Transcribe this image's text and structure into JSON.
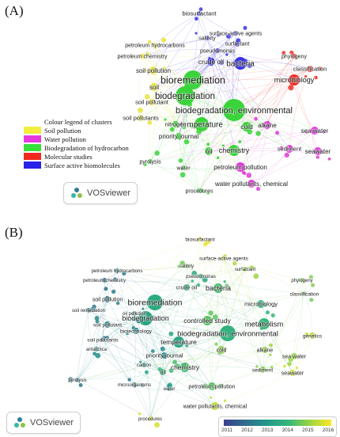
{
  "panel_a": {
    "label": "(A)",
    "legend": {
      "title": "Colour legend of clusters",
      "items": [
        {
          "label": "Soil pollution",
          "color": "#f2ee3c"
        },
        {
          "label": "Water pollution",
          "color": "#e639e0"
        },
        {
          "label": "Biodegradation of hydrocarbon",
          "color": "#37e03a"
        },
        {
          "label": "Molecular studies",
          "color": "#f0281e"
        },
        {
          "label": "Surface active biomolecules",
          "color": "#2a22e6"
        }
      ]
    },
    "brand": "VOSviewer"
  },
  "panel_b": {
    "label": "(B)",
    "brand": "VOSviewer",
    "colorbar": {
      "ticks": [
        "2011",
        "2012",
        "2013",
        "2014",
        "2015",
        "2016"
      ],
      "colors": [
        "#3b3f8f",
        "#2f6d8c",
        "#22988a",
        "#35b779",
        "#9bd542",
        "#fde725"
      ]
    }
  },
  "cluster_colors": {
    "yellow": "#e8e43a",
    "magenta": "#e03ad8",
    "green": "#3ad43a",
    "red": "#ee2a22",
    "blue": "#3a34e0"
  },
  "terms_a": [
    {
      "text": "biosurfactant",
      "c": "blue"
    },
    {
      "text": "surface-active agents",
      "c": "blue"
    },
    {
      "text": "salinity",
      "c": "blue"
    },
    {
      "text": "surfactant",
      "c": "blue"
    },
    {
      "text": "petroleum hydrocarbons",
      "c": "yellow"
    },
    {
      "text": "pseudomonas",
      "c": "blue"
    },
    {
      "text": "phylogeny",
      "c": "red"
    },
    {
      "text": "petroleum chemistry",
      "c": "yellow"
    },
    {
      "text": "crude oil",
      "c": "blue"
    },
    {
      "text": "bacteria",
      "c": "blue"
    },
    {
      "text": "classification",
      "c": "red"
    },
    {
      "text": "soil pollution",
      "c": "yellow"
    },
    {
      "text": "microbiology",
      "c": "red"
    },
    {
      "text": "bioremediation",
      "c": "green"
    },
    {
      "text": "soil",
      "c": "yellow"
    },
    {
      "text": "biodegradation",
      "c": "green"
    },
    {
      "text": "soil pollutant",
      "c": "yellow"
    },
    {
      "text": "biodegradation, environmental",
      "c": "green"
    },
    {
      "text": "soil pollutants",
      "c": "yellow"
    },
    {
      "text": "temperature",
      "c": "green"
    },
    {
      "text": "cold",
      "c": "green"
    },
    {
      "text": "alkane",
      "c": "magenta"
    },
    {
      "text": "sea water",
      "c": "magenta"
    },
    {
      "text": "nitrogen",
      "c": "green"
    },
    {
      "text": "priority journal",
      "c": "green"
    },
    {
      "text": "chemistry",
      "c": "green"
    },
    {
      "text": "sediment",
      "c": "magenta"
    },
    {
      "text": "seawater",
      "c": "magenta"
    },
    {
      "text": "oil",
      "c": "green"
    },
    {
      "text": "pyrolysis",
      "c": "green"
    },
    {
      "text": "water",
      "c": "green"
    },
    {
      "text": "petroleum pollution",
      "c": "magenta"
    },
    {
      "text": "water pollutants, chemical",
      "c": "magenta"
    },
    {
      "text": "procedures",
      "c": "green"
    }
  ],
  "terms_b": [
    {
      "text": "biosurfactant",
      "year": 2015.8
    },
    {
      "text": "surface-active agents",
      "year": 2015.2
    },
    {
      "text": "salinity",
      "year": 2014.6
    },
    {
      "text": "surfactant",
      "year": 2015.0
    },
    {
      "text": "petroleum hydrocarbons",
      "year": 2012.3
    },
    {
      "text": "pseudomonas",
      "year": 2013.5
    },
    {
      "text": "phylogeny",
      "year": 2014.8
    },
    {
      "text": "petroleum chemistry",
      "year": 2012.0
    },
    {
      "text": "crude oil",
      "year": 2013.8
    },
    {
      "text": "bacteria",
      "year": 2014.2
    },
    {
      "text": "classification",
      "year": 2014.6
    },
    {
      "text": "soil pollution",
      "year": 2012.4
    },
    {
      "text": "bioremediation",
      "year": 2013.6
    },
    {
      "text": "microbiology",
      "year": 2013.8
    },
    {
      "text": "soil remediation",
      "year": 2012.2
    },
    {
      "text": "oil pollution",
      "year": 2012.4
    },
    {
      "text": "biodegradation",
      "year": 2013.4
    },
    {
      "text": "controlled study",
      "year": 2014.4
    },
    {
      "text": "metabolism",
      "year": 2014.0
    },
    {
      "text": "soil pollutant",
      "year": 2012.6
    },
    {
      "text": "biotechnology",
      "year": 2012.6
    },
    {
      "text": "biodegradation, environmental",
      "year": 2013.8
    },
    {
      "text": "genetics",
      "year": 2015.4
    },
    {
      "text": "soil pollutants",
      "year": 2012.1
    },
    {
      "text": "temperature",
      "year": 2013.4
    },
    {
      "text": "cold",
      "year": 2014.8
    },
    {
      "text": "alkane",
      "year": 2015.0
    },
    {
      "text": "antarctica",
      "year": 2012.8
    },
    {
      "text": "priority journal",
      "year": 2012.6
    },
    {
      "text": "sea water",
      "year": 2015.0
    },
    {
      "text": "carbon",
      "year": 2013.2
    },
    {
      "text": "chemistry",
      "year": 2014.2
    },
    {
      "text": "sediment",
      "year": 2014.8
    },
    {
      "text": "seawater",
      "year": 2015.6
    },
    {
      "text": "oil",
      "year": 2014.0
    },
    {
      "text": "pyrolysis",
      "year": 2012.2
    },
    {
      "text": "microorganisms",
      "year": 2012.4
    },
    {
      "text": "water",
      "year": 2013.0
    },
    {
      "text": "petroleum pollution",
      "year": 2014.4
    },
    {
      "text": "water pollutants, chemical",
      "year": 2015.4
    },
    {
      "text": "procedures",
      "year": 2015.6
    }
  ]
}
